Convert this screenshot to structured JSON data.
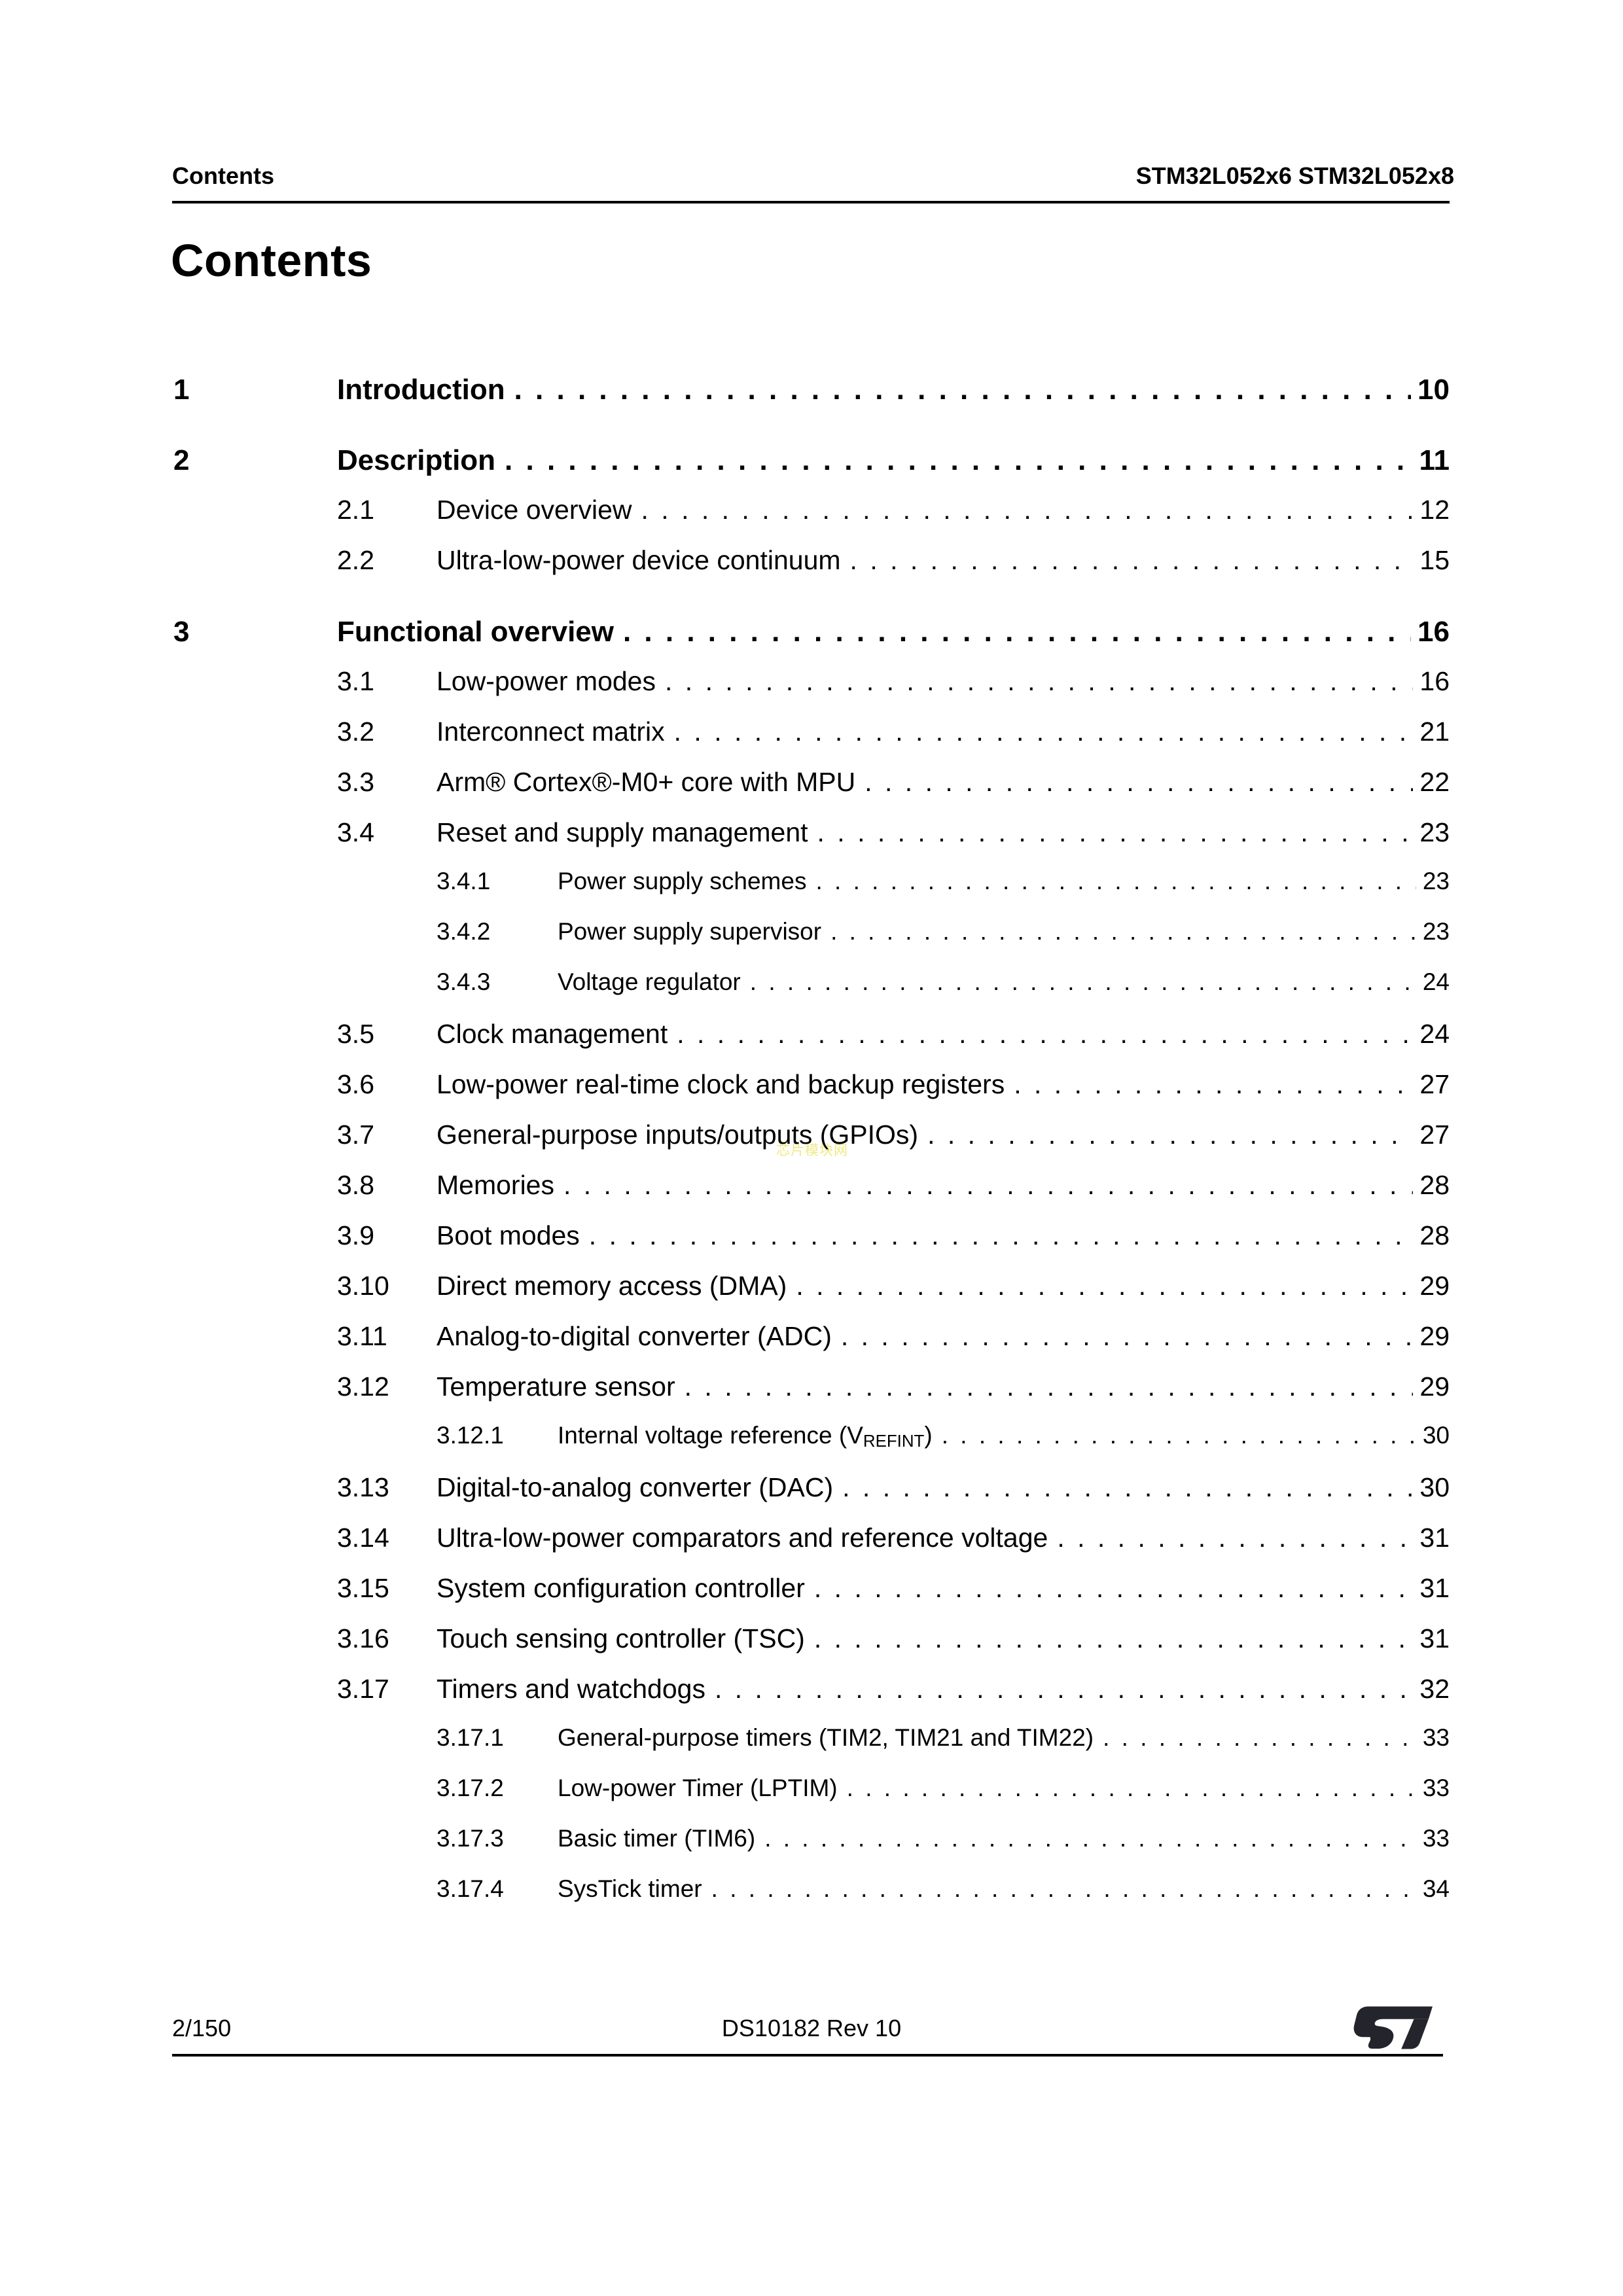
{
  "page_header": {
    "left": "Contents",
    "right": "STM32L052x6 STM32L052x8"
  },
  "title": "Contents",
  "watermark": "芯片模块网",
  "toc": {
    "entries": [
      {
        "level": 1,
        "num": "1",
        "title": "Introduction",
        "page": "10"
      },
      {
        "level": 1,
        "num": "2",
        "title": "Description",
        "page": "11"
      },
      {
        "level": 2,
        "num": "2.1",
        "title": "Device overview",
        "page": "12"
      },
      {
        "level": 2,
        "num": "2.2",
        "title": "Ultra-low-power device continuum",
        "page": "15"
      },
      {
        "level": 1,
        "num": "3",
        "title": "Functional overview",
        "page": "16"
      },
      {
        "level": 2,
        "num": "3.1",
        "title": "Low-power modes",
        "page": "16"
      },
      {
        "level": 2,
        "num": "3.2",
        "title": "Interconnect matrix",
        "page": "21"
      },
      {
        "level": 2,
        "num": "3.3",
        "title": "Arm® Cortex®-M0+ core with MPU",
        "page": "22"
      },
      {
        "level": 2,
        "num": "3.4",
        "title": "Reset and supply management",
        "page": "23"
      },
      {
        "level": 3,
        "num": "3.4.1",
        "title": "Power supply schemes",
        "page": "23"
      },
      {
        "level": 3,
        "num": "3.4.2",
        "title": "Power supply supervisor",
        "page": "23"
      },
      {
        "level": 3,
        "num": "3.4.3",
        "title": "Voltage regulator",
        "page": "24"
      },
      {
        "level": 2,
        "num": "3.5",
        "title": "Clock management",
        "page": "24"
      },
      {
        "level": 2,
        "num": "3.6",
        "title": "Low-power real-time clock and backup registers",
        "page": "27"
      },
      {
        "level": 2,
        "num": "3.7",
        "title": "General-purpose inputs/outputs (GPIOs)",
        "page": "27"
      },
      {
        "level": 2,
        "num": "3.8",
        "title": "Memories",
        "page": "28"
      },
      {
        "level": 2,
        "num": "3.9",
        "title": "Boot modes",
        "page": "28"
      },
      {
        "level": 2,
        "num": "3.10",
        "title": "Direct memory access (DMA)",
        "page": "29"
      },
      {
        "level": 2,
        "num": "3.11",
        "title": "Analog-to-digital converter (ADC)",
        "page": "29"
      },
      {
        "level": 2,
        "num": "3.12",
        "title": "Temperature sensor",
        "page": "29"
      },
      {
        "level": 3,
        "num": "3.12.1",
        "title_pre": "Internal voltage reference (V",
        "title_sub": "REFINT",
        "title_post": ")",
        "page": "30"
      },
      {
        "level": 2,
        "num": "3.13",
        "title": "Digital-to-analog converter (DAC)",
        "page": "30"
      },
      {
        "level": 2,
        "num": "3.14",
        "title": "Ultra-low-power comparators and reference voltage",
        "page": "31"
      },
      {
        "level": 2,
        "num": "3.15",
        "title": "System configuration controller",
        "page": "31"
      },
      {
        "level": 2,
        "num": "3.16",
        "title": "Touch sensing controller (TSC)",
        "page": "31"
      },
      {
        "level": 2,
        "num": "3.17",
        "title": "Timers and watchdogs",
        "page": "32"
      },
      {
        "level": 3,
        "num": "3.17.1",
        "title": "General-purpose timers (TIM2, TIM21 and TIM22)",
        "page": "33"
      },
      {
        "level": 3,
        "num": "3.17.2",
        "title": "Low-power Timer (LPTIM)",
        "page": "33"
      },
      {
        "level": 3,
        "num": "3.17.3",
        "title": "Basic timer (TIM6)",
        "page": "33"
      },
      {
        "level": 3,
        "num": "3.17.4",
        "title": "SysTick timer",
        "page": "34"
      }
    ]
  },
  "footer": {
    "page_indicator": "2/150",
    "doc_ref": "DS10182 Rev 10"
  },
  "colors": {
    "logo": "#24242c",
    "watermark": "#f0ea82",
    "text": "#000000",
    "background": "#ffffff"
  }
}
